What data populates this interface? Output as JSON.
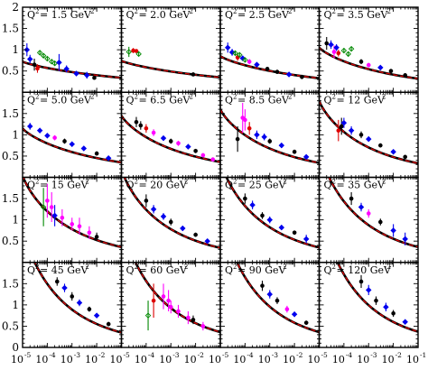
{
  "chart_data": {
    "type": "scatter",
    "grid": {
      "rows": 4,
      "cols": 4
    },
    "xscale": "log",
    "xlim": [
      1e-05,
      0.1
    ],
    "x_tick_labels": [
      {
        "base": "10",
        "exp": "-5"
      },
      {
        "base": "10",
        "exp": "-4"
      },
      {
        "base": "10",
        "exp": "-3"
      },
      {
        "base": "10",
        "exp": "-2"
      },
      {
        "base": "10",
        "exp": "-1"
      }
    ],
    "ylim": [
      0,
      2
    ],
    "y_tick_labels": [
      "0",
      "0.5",
      "1",
      "1.5",
      "2"
    ],
    "series": [
      {
        "name": "",
        "color": "#000000"
      },
      {
        "name": "",
        "color": "#0000ee"
      },
      {
        "name": "",
        "color": "#ff00ff"
      },
      {
        "name": "",
        "color": "#008800"
      },
      {
        "name": "",
        "color": "#dd0000"
      }
    ],
    "panels": [
      {
        "q2_label": "Q",
        "q2_value": "1.5",
        "unit": "GeV",
        "curve": [
          0.72,
          0.34
        ],
        "points": [
          [
            1.5e-05,
            1.0,
            0.15,
            1
          ],
          [
            2e-05,
            0.78,
            0.1,
            1
          ],
          [
            3e-05,
            0.65,
            0.14,
            0
          ],
          [
            4e-05,
            0.56,
            0.1,
            4
          ],
          [
            5e-05,
            0.93,
            0.05,
            3
          ],
          [
            7e-05,
            0.86,
            0.05,
            3
          ],
          [
            0.0001,
            0.79,
            0.05,
            3
          ],
          [
            0.00015,
            0.72,
            0.05,
            3
          ],
          [
            0.0002,
            0.68,
            0.06,
            3
          ],
          [
            0.0003,
            0.7,
            0.2,
            1
          ],
          [
            0.0006,
            0.55,
            0.08,
            1
          ],
          [
            0.0015,
            0.44,
            0.06,
            1
          ],
          [
            0.004,
            0.4,
            0.08,
            1
          ],
          [
            0.008,
            0.34,
            0.04,
            0
          ]
        ]
      },
      {
        "q2_label": "Q",
        "q2_value": "2.0",
        "unit": "GeV",
        "curve": [
          0.74,
          0.35
        ],
        "points": [
          [
            2e-05,
            0.95,
            0.12,
            3
          ],
          [
            3e-05,
            0.98,
            0.06,
            4
          ],
          [
            4e-05,
            0.97,
            0.04,
            4
          ],
          [
            5e-05,
            0.9,
            0.05,
            3
          ],
          [
            0.008,
            0.42,
            0.02,
            0
          ]
        ]
      },
      {
        "q2_label": "Q",
        "q2_value": "2.5",
        "unit": "GeV",
        "curve": [
          0.85,
          0.33
        ],
        "points": [
          [
            2e-05,
            1.05,
            0.12,
            1
          ],
          [
            3e-05,
            0.94,
            0.08,
            1
          ],
          [
            4e-05,
            0.92,
            0.06,
            3
          ],
          [
            5e-05,
            0.82,
            0.08,
            4
          ],
          [
            6e-05,
            0.88,
            0.05,
            3
          ],
          [
            8e-05,
            0.8,
            0.06,
            1
          ],
          [
            0.0001,
            0.76,
            0.05,
            3
          ],
          [
            0.00015,
            0.72,
            0.06,
            2
          ],
          [
            0.0003,
            0.65,
            0.05,
            1
          ],
          [
            0.0008,
            0.55,
            0.05,
            0
          ],
          [
            0.002,
            0.48,
            0.05,
            0
          ],
          [
            0.006,
            0.42,
            0.05,
            1
          ],
          [
            0.02,
            0.36,
            0.05,
            0
          ]
        ]
      },
      {
        "q2_label": "Q",
        "q2_value": "3.5",
        "unit": "GeV",
        "curve": [
          1.05,
          0.32
        ],
        "points": [
          [
            2e-05,
            1.15,
            0.15,
            0
          ],
          [
            3e-05,
            1.12,
            0.1,
            1
          ],
          [
            4e-05,
            0.95,
            0.15,
            2
          ],
          [
            5e-05,
            1.05,
            0.08,
            1
          ],
          [
            6e-05,
            0.92,
            0.08,
            4
          ],
          [
            0.0001,
            0.98,
            0.06,
            3
          ],
          [
            0.00015,
            0.9,
            0.06,
            3
          ],
          [
            0.0002,
            1.02,
            0.06,
            3
          ],
          [
            0.0005,
            0.72,
            0.06,
            0
          ],
          [
            0.001,
            0.64,
            0.05,
            2
          ],
          [
            0.003,
            0.58,
            0.05,
            1
          ],
          [
            0.008,
            0.5,
            0.05,
            0
          ],
          [
            0.03,
            0.4,
            0.05,
            0
          ]
        ]
      },
      {
        "q2_label": "Q",
        "q2_value": "5.0",
        "unit": "GeV",
        "curve": [
          1.15,
          0.35
        ],
        "points": [
          [
            2e-05,
            1.2,
            0.08,
            1
          ],
          [
            5e-05,
            1.1,
            0.06,
            1
          ],
          [
            0.0001,
            0.98,
            0.06,
            1
          ],
          [
            0.0002,
            0.93,
            0.06,
            2
          ],
          [
            0.0005,
            0.85,
            0.06,
            0
          ],
          [
            0.001,
            0.78,
            0.06,
            1
          ],
          [
            0.003,
            0.68,
            0.05,
            1
          ],
          [
            0.01,
            0.56,
            0.05,
            0
          ],
          [
            0.03,
            0.45,
            0.05,
            1
          ]
        ]
      },
      {
        "q2_label": "Q",
        "q2_value": "6.5",
        "unit": "GeV",
        "curve": [
          1.45,
          0.36
        ],
        "points": [
          [
            4e-05,
            1.3,
            0.12,
            0
          ],
          [
            6e-05,
            1.22,
            0.1,
            0
          ],
          [
            0.0001,
            1.15,
            0.1,
            4
          ],
          [
            0.0002,
            1.05,
            0.08,
            2
          ],
          [
            0.0005,
            0.92,
            0.06,
            1
          ],
          [
            0.001,
            0.85,
            0.06,
            0
          ],
          [
            0.002,
            0.8,
            0.06,
            2
          ],
          [
            0.005,
            0.72,
            0.06,
            1
          ],
          [
            0.01,
            0.62,
            0.05,
            0
          ],
          [
            0.02,
            0.52,
            0.05,
            2
          ],
          [
            0.05,
            0.42,
            0.05,
            2
          ]
        ]
      },
      {
        "q2_label": "Q",
        "q2_value": "8.5",
        "unit": "GeV",
        "curve": [
          1.6,
          0.34
        ],
        "points": [
          [
            5e-05,
            0.9,
            0.3,
            0
          ],
          [
            8e-05,
            1.4,
            0.35,
            2
          ],
          [
            0.0001,
            1.35,
            0.25,
            2
          ],
          [
            0.00015,
            1.15,
            0.15,
            4
          ],
          [
            0.0003,
            1.0,
            0.1,
            1
          ],
          [
            0.0006,
            0.95,
            0.08,
            1
          ],
          [
            0.001,
            0.85,
            0.06,
            0
          ],
          [
            0.003,
            0.75,
            0.06,
            1
          ],
          [
            0.01,
            0.6,
            0.05,
            0
          ],
          [
            0.03,
            0.48,
            0.05,
            1
          ]
        ]
      },
      {
        "q2_label": "Q",
        "q2_value": "12",
        "unit": "GeV",
        "curve": [
          1.8,
          0.33
        ],
        "points": [
          [
            6e-05,
            1.1,
            0.25,
            4
          ],
          [
            8e-05,
            1.2,
            0.2,
            0
          ],
          [
            0.0001,
            1.28,
            0.12,
            1
          ],
          [
            0.0002,
            1.1,
            0.1,
            1
          ],
          [
            0.0005,
            1.0,
            0.08,
            0
          ],
          [
            0.001,
            0.9,
            0.06,
            1
          ],
          [
            0.003,
            0.75,
            0.05,
            0
          ],
          [
            0.01,
            0.6,
            0.05,
            1
          ],
          [
            0.03,
            0.48,
            0.05,
            0
          ]
        ]
      },
      {
        "q2_label": "Q",
        "q2_value": "15",
        "unit": "GeV",
        "curve": [
          2.05,
          0.36
        ],
        "points": [
          [
            7e-05,
            1.3,
            0.45,
            3
          ],
          [
            0.0001,
            1.45,
            0.4,
            2
          ],
          [
            0.00015,
            1.3,
            0.35,
            2
          ],
          [
            0.0002,
            1.1,
            0.25,
            1
          ],
          [
            0.0004,
            1.05,
            0.2,
            2
          ],
          [
            0.001,
            0.9,
            0.15,
            2
          ],
          [
            0.002,
            0.85,
            0.2,
            2
          ],
          [
            0.005,
            0.7,
            0.15,
            2
          ],
          [
            0.01,
            0.6,
            0.1,
            0
          ]
        ]
      },
      {
        "q2_label": "Q",
        "q2_value": "20",
        "unit": "GeV",
        "curve": [
          2.2,
          0.34
        ],
        "points": [
          [
            0.0001,
            1.45,
            0.15,
            0
          ],
          [
            0.0002,
            1.25,
            0.1,
            1
          ],
          [
            0.0005,
            1.08,
            0.08,
            1
          ],
          [
            0.001,
            0.95,
            0.08,
            0
          ],
          [
            0.003,
            0.8,
            0.06,
            1
          ],
          [
            0.01,
            0.65,
            0.05,
            0
          ],
          [
            0.03,
            0.5,
            0.05,
            1
          ]
        ]
      },
      {
        "q2_label": "Q",
        "q2_value": "25",
        "unit": "GeV",
        "curve": [
          2.4,
          0.35
        ],
        "points": [
          [
            0.0001,
            1.5,
            0.12,
            0
          ],
          [
            0.0002,
            1.35,
            0.1,
            1
          ],
          [
            0.0005,
            1.1,
            0.08,
            0
          ],
          [
            0.001,
            1.0,
            0.08,
            1
          ],
          [
            0.003,
            0.82,
            0.06,
            1
          ],
          [
            0.01,
            0.7,
            0.05,
            0
          ],
          [
            0.03,
            0.55,
            0.1,
            1
          ]
        ]
      },
      {
        "q2_label": "Q",
        "q2_value": "35",
        "unit": "GeV",
        "curve": [
          2.65,
          0.36
        ],
        "points": [
          [
            0.0002,
            1.5,
            0.15,
            0
          ],
          [
            0.0005,
            1.3,
            0.1,
            1
          ],
          [
            0.001,
            1.15,
            0.1,
            2
          ],
          [
            0.003,
            0.95,
            0.08,
            0
          ],
          [
            0.01,
            0.75,
            0.15,
            1
          ],
          [
            0.03,
            0.55,
            0.15,
            1
          ]
        ]
      },
      {
        "q2_label": "Q",
        "q2_value": "45",
        "unit": "GeV",
        "curve": [
          2.85,
          0.35
        ],
        "points": [
          [
            0.00025,
            1.55,
            0.1,
            0
          ],
          [
            0.0005,
            1.4,
            0.1,
            1
          ],
          [
            0.001,
            1.2,
            0.1,
            0
          ],
          [
            0.002,
            1.05,
            0.08,
            1
          ],
          [
            0.005,
            0.9,
            0.06,
            0
          ],
          [
            0.01,
            0.75,
            0.05,
            1
          ],
          [
            0.03,
            0.55,
            0.05,
            0
          ]
        ]
      },
      {
        "q2_label": "Q",
        "q2_value": "60",
        "unit": "GeV",
        "curve": [
          3.0,
          0.36
        ],
        "points": [
          [
            0.00012,
            0.75,
            0.35,
            3
          ],
          [
            0.0002,
            1.1,
            0.4,
            4
          ],
          [
            0.0005,
            1.2,
            0.3,
            2
          ],
          [
            0.0008,
            1.1,
            0.25,
            2
          ],
          [
            0.001,
            0.95,
            0.15,
            2
          ],
          [
            0.002,
            0.85,
            0.15,
            2
          ],
          [
            0.005,
            0.7,
            0.15,
            2
          ],
          [
            0.008,
            0.65,
            0.1,
            0
          ],
          [
            0.02,
            0.5,
            0.1,
            2
          ]
        ]
      },
      {
        "q2_label": "Q",
        "q2_value": "90",
        "unit": "GeV",
        "curve": [
          3.25,
          0.36
        ],
        "points": [
          [
            0.0005,
            1.45,
            0.12,
            0
          ],
          [
            0.001,
            1.25,
            0.1,
            1
          ],
          [
            0.002,
            1.1,
            0.08,
            0
          ],
          [
            0.005,
            0.9,
            0.08,
            2
          ],
          [
            0.01,
            0.78,
            0.06,
            1
          ],
          [
            0.03,
            0.58,
            0.05,
            0
          ]
        ]
      },
      {
        "q2_label": "Q",
        "q2_value": "120",
        "unit": "GeV",
        "curve": [
          3.4,
          0.37
        ],
        "points": [
          [
            0.0005,
            1.55,
            0.15,
            0
          ],
          [
            0.001,
            1.35,
            0.12,
            1
          ],
          [
            0.002,
            1.1,
            0.1,
            0
          ],
          [
            0.005,
            0.95,
            0.1,
            1
          ],
          [
            0.01,
            0.8,
            0.08,
            0
          ],
          [
            0.03,
            0.6,
            0.06,
            1
          ]
        ]
      }
    ]
  }
}
